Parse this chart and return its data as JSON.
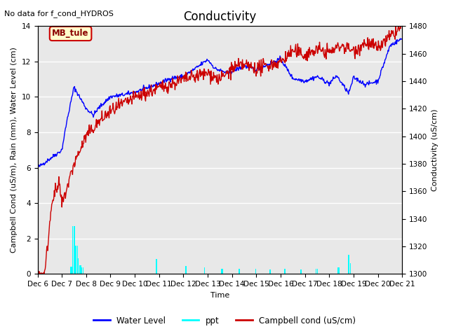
{
  "title": "Conductivity",
  "no_data_text": "No data for f_cond_HYDROS",
  "xlabel": "Time",
  "ylabel_left": "Campbell Cond (uS/m), Rain (mm), Water Level (cm)",
  "ylabel_right": "Conductivity (uS/cm)",
  "xlim_days": [
    6,
    21
  ],
  "ylim_left": [
    0,
    14
  ],
  "ylim_right": [
    1300,
    1480
  ],
  "xtick_labels": [
    "Dec 6",
    "Dec 7",
    "Dec 8",
    "Dec 9",
    "Dec 10",
    "Dec 11",
    "Dec 12",
    "Dec 13",
    "Dec 14",
    "Dec 15",
    "Dec 16",
    "Dec 17",
    "Dec 18",
    "Dec 19",
    "Dec 20",
    "Dec 21"
  ],
  "ytick_left": [
    0,
    2,
    4,
    6,
    8,
    10,
    12,
    14
  ],
  "ytick_right": [
    1300,
    1320,
    1340,
    1360,
    1380,
    1400,
    1420,
    1440,
    1460,
    1480
  ],
  "bg_color": "#e8e8e8",
  "grid_color": "#ffffff",
  "water_level_color": "#0000ff",
  "ppt_color": "#00ffff",
  "campbell_color": "#cc0000",
  "annotation_box": {
    "text": "MB_tule",
    "facecolor": "#ffffcc",
    "edgecolor": "#cc0000"
  },
  "title_fontsize": 12,
  "axis_fontsize": 8,
  "tick_fontsize": 7.5
}
